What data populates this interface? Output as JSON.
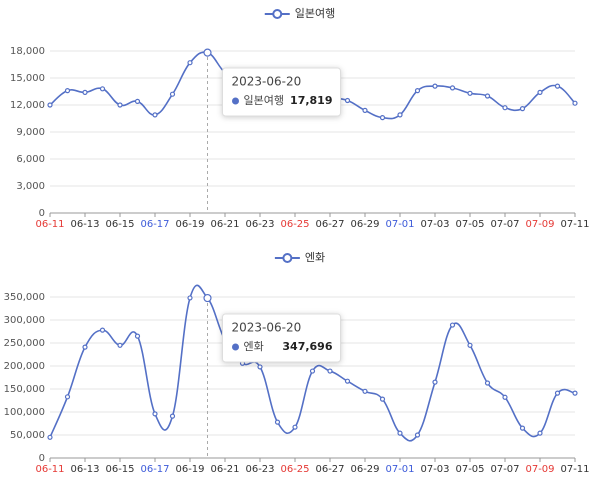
{
  "chart_data": [
    {
      "type": "line",
      "categories": [
        "06-11",
        null,
        "06-13",
        null,
        "06-15",
        null,
        "06-17",
        null,
        "06-19",
        null,
        "06-21",
        null,
        "06-23",
        null,
        "06-25",
        null,
        "06-27",
        null,
        "06-29",
        null,
        "07-01",
        null,
        "07-03",
        null,
        "07-05",
        null,
        "07-07",
        null,
        "07-09",
        null,
        "07-11"
      ],
      "category_colors": [
        "#e53935",
        null,
        "#333333",
        null,
        "#333333",
        null,
        "#3d5bd9",
        null,
        "#333333",
        null,
        "#333333",
        null,
        "#333333",
        null,
        "#e53935",
        null,
        "#333333",
        null,
        "#333333",
        null,
        "#3d5bd9",
        null,
        "#333333",
        null,
        "#333333",
        null,
        "#333333",
        null,
        "#e53935",
        null,
        "#333333"
      ],
      "series": [
        {
          "name": "일본여행",
          "color": "#5470c6",
          "values": [
            12000,
            13600,
            13400,
            13800,
            12000,
            12400,
            10900,
            13200,
            16700,
            17819,
            15600,
            14600,
            13800,
            13400,
            13200,
            13000,
            12800,
            12500,
            11400,
            10600,
            10900,
            13600,
            14100,
            13900,
            13300,
            13000,
            11700,
            11600,
            13400,
            14100,
            12200
          ],
          "value_labels": [
            null,
            null,
            null,
            null,
            null,
            null,
            null,
            null,
            null,
            "17,819",
            null,
            null,
            null,
            null,
            null,
            null,
            null,
            null,
            null,
            null,
            null,
            null,
            null,
            null,
            null,
            null,
            null,
            null,
            null,
            null,
            null
          ]
        }
      ],
      "tooltip_title": "2023-06-20",
      "ylim": [
        0,
        18000
      ],
      "yticks": [
        0,
        {
          "value": 3000,
          "label": "3,000"
        },
        {
          "value": 6000,
          "label": "6,000"
        },
        {
          "value": 9000,
          "label": "9,000"
        },
        {
          "value": 12000,
          "label": "12,000"
        },
        {
          "value": 15000,
          "label": "15,000"
        },
        {
          "value": 18000,
          "label": "18,000"
        }
      ],
      "grid": true
    },
    {
      "type": "line",
      "categories": [
        "06-11",
        null,
        "06-13",
        null,
        "06-15",
        null,
        "06-17",
        null,
        "06-19",
        null,
        "06-21",
        null,
        "06-23",
        null,
        "06-25",
        null,
        "06-27",
        null,
        "06-29",
        null,
        "07-01",
        null,
        "07-03",
        null,
        "07-05",
        null,
        "07-07",
        null,
        "07-09",
        null,
        "07-11"
      ],
      "category_colors": [
        "#e53935",
        null,
        "#333333",
        null,
        "#333333",
        null,
        "#3d5bd9",
        null,
        "#333333",
        null,
        "#333333",
        null,
        "#333333",
        null,
        "#e53935",
        null,
        "#333333",
        null,
        "#333333",
        null,
        "#3d5bd9",
        null,
        "#333333",
        null,
        "#333333",
        null,
        "#333333",
        null,
        "#e53935",
        null,
        "#333333"
      ],
      "series": [
        {
          "name": "엔화",
          "color": "#5470c6",
          "values": [
            45000,
            133000,
            241000,
            278000,
            245000,
            265000,
            96000,
            91000,
            348000,
            347696,
            256000,
            206000,
            198000,
            78000,
            67000,
            189000,
            189000,
            167000,
            145000,
            128000,
            54000,
            50000,
            165000,
            289000,
            245000,
            163000,
            132000,
            65000,
            54000,
            141000,
            141000
          ],
          "value_labels": [
            null,
            null,
            null,
            null,
            null,
            null,
            null,
            null,
            null,
            "347,696",
            null,
            null,
            null,
            null,
            null,
            null,
            null,
            null,
            null,
            null,
            null,
            null,
            null,
            null,
            null,
            null,
            null,
            null,
            null,
            null,
            null
          ]
        }
      ],
      "tooltip_title": "2023-06-20",
      "ylim": [
        0,
        350000
      ],
      "yticks": [
        0,
        {
          "value": 50000,
          "label": "50,000"
        },
        {
          "value": 100000,
          "label": "100,000"
        },
        {
          "value": 150000,
          "label": "150,000"
        },
        {
          "value": 200000,
          "label": "200,000"
        },
        {
          "value": 250000,
          "label": "250,000"
        },
        {
          "value": 300000,
          "label": "300,000"
        },
        {
          "value": 350000,
          "label": "350,000"
        }
      ],
      "grid": true
    }
  ]
}
